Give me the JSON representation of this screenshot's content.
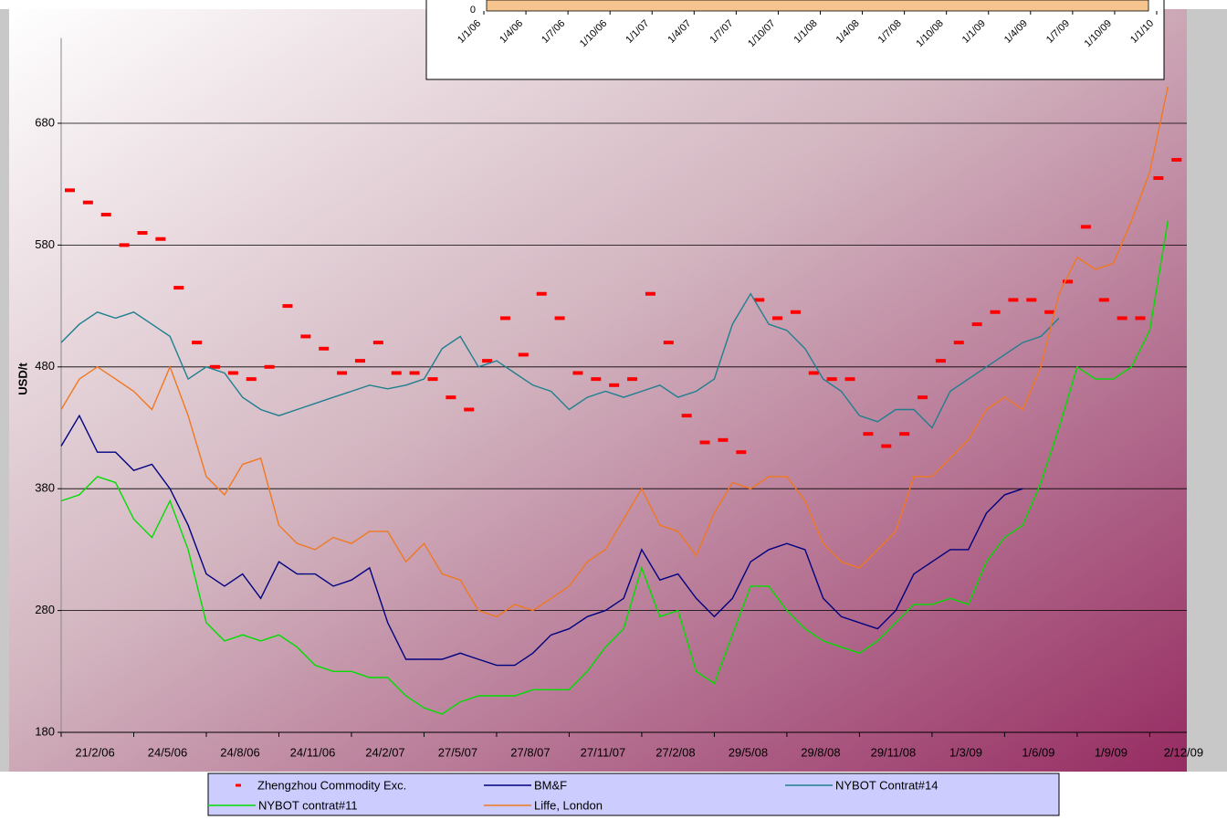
{
  "chart_data": [
    {
      "type": "line",
      "y_label": "USD/t",
      "x": [
        0,
        23,
        46,
        69,
        92,
        115,
        138,
        161,
        184,
        207,
        230,
        253,
        276,
        299,
        322,
        345,
        368,
        391,
        414,
        437,
        460,
        483,
        506,
        529,
        552,
        575,
        598,
        621,
        644,
        667,
        690,
        713,
        736,
        759,
        782,
        805,
        828,
        851,
        874,
        897,
        920,
        943,
        966,
        989,
        1012,
        1035,
        1058,
        1081,
        1104,
        1127,
        1150,
        1173,
        1196,
        1219,
        1242,
        1265,
        1288,
        1311,
        1334,
        1357,
        1380,
        1403
      ],
      "xlim": [
        0,
        1427
      ],
      "xticks": [
        {
          "value": 0,
          "label": "21/2/06"
        },
        {
          "value": 92,
          "label": "24/5/06"
        },
        {
          "value": 184,
          "label": "24/8/06"
        },
        {
          "value": 276,
          "label": "24/11/06"
        },
        {
          "value": 368,
          "label": "24/2/07"
        },
        {
          "value": 460,
          "label": "27/5/07"
        },
        {
          "value": 552,
          "label": "27/8/07"
        },
        {
          "value": 644,
          "label": "27/11/07"
        },
        {
          "value": 736,
          "label": "27/2/08"
        },
        {
          "value": 828,
          "label": "29/5/08"
        },
        {
          "value": 920,
          "label": "29/8/08"
        },
        {
          "value": 1012,
          "label": "29/11/08"
        },
        {
          "value": 1104,
          "label": "1/3/09"
        },
        {
          "value": 1196,
          "label": "1/6/09"
        },
        {
          "value": 1288,
          "label": "1/9/09"
        },
        {
          "value": 1380,
          "label": "2/12/09"
        }
      ],
      "ylim": [
        180,
        750
      ],
      "yticks": [
        180,
        280,
        380,
        480,
        580,
        680
      ],
      "grid": true,
      "legend": "bottom",
      "series": [
        {
          "name": "Zhengzhou Commodity Exc.",
          "type": "scatter",
          "color": "#ff0000",
          "values": [
            625,
            615,
            605,
            580,
            590,
            585,
            545,
            500,
            480,
            475,
            470,
            480,
            530,
            505,
            495,
            475,
            485,
            500,
            475,
            475,
            470,
            455,
            445,
            485,
            520,
            490,
            540,
            520,
            475,
            470,
            465,
            470,
            540,
            500,
            440,
            418,
            420,
            410,
            535,
            520,
            525,
            475,
            470,
            470,
            425,
            415,
            425,
            455,
            485,
            500,
            515,
            525,
            535,
            535,
            525,
            550,
            595,
            535,
            520,
            520,
            635,
            650
          ]
        },
        {
          "name": "BM&F",
          "color": "#000080",
          "values": [
            415,
            440,
            410,
            410,
            395,
            400,
            380,
            350,
            310,
            300,
            310,
            290,
            320,
            310,
            310,
            300,
            305,
            315,
            270,
            240,
            240,
            240,
            245,
            240,
            235,
            235,
            245,
            260,
            265,
            275,
            280,
            290,
            330,
            305,
            310,
            290,
            275,
            290,
            320,
            330,
            335,
            330,
            290,
            275,
            270,
            265,
            280,
            310,
            320,
            330,
            330,
            360,
            375,
            380,
            null,
            null,
            null,
            null,
            null,
            null,
            null,
            null
          ]
        },
        {
          "name": "NYBOT Contrat#14",
          "color": "#1f7f8f",
          "values": [
            500,
            515,
            525,
            520,
            525,
            515,
            505,
            470,
            480,
            475,
            455,
            445,
            440,
            445,
            450,
            455,
            460,
            465,
            462,
            465,
            470,
            495,
            505,
            480,
            485,
            475,
            465,
            460,
            445,
            455,
            460,
            455,
            460,
            465,
            455,
            460,
            470,
            515,
            540,
            515,
            510,
            495,
            470,
            460,
            440,
            435,
            445,
            445,
            430,
            460,
            470,
            480,
            490,
            500,
            505,
            520,
            null,
            null,
            null,
            null,
            null,
            null
          ]
        },
        {
          "name": "NYBOT contrat#11",
          "color": "#00dd00",
          "values": [
            370,
            375,
            390,
            385,
            355,
            340,
            370,
            330,
            270,
            255,
            260,
            255,
            260,
            250,
            235,
            230,
            230,
            225,
            225,
            210,
            200,
            195,
            205,
            210,
            210,
            210,
            215,
            215,
            215,
            230,
            250,
            265,
            315,
            275,
            280,
            230,
            220,
            260,
            300,
            300,
            280,
            265,
            255,
            250,
            245,
            255,
            270,
            285,
            285,
            290,
            285,
            320,
            340,
            350,
            385,
            430,
            480,
            470,
            470,
            480,
            510,
            600
          ]
        },
        {
          "name": "Liffe, London",
          "color": "#f07820",
          "values": [
            445,
            470,
            480,
            470,
            460,
            445,
            480,
            440,
            390,
            375,
            400,
            405,
            350,
            335,
            330,
            340,
            335,
            345,
            345,
            320,
            335,
            310,
            305,
            280,
            275,
            285,
            280,
            290,
            300,
            320,
            330,
            355,
            380,
            350,
            345,
            325,
            360,
            385,
            380,
            390,
            390,
            370,
            335,
            320,
            315,
            330,
            345,
            390,
            390,
            405,
            420,
            445,
            455,
            445,
            480,
            540,
            570,
            560,
            565,
            600,
            640,
            710
          ]
        }
      ]
    },
    {
      "type": "area",
      "color": "#f5c48f",
      "yticks": [
        0
      ],
      "categories": [
        "1/1/06",
        "1/4/06",
        "1/7/06",
        "1/10/06",
        "1/1/07",
        "1/4/07",
        "1/7/07",
        "1/10/07",
        "1/1/08",
        "1/4/08",
        "1/7/08",
        "1/10/08",
        "1/1/09",
        "1/4/09",
        "1/7/09",
        "1/10/09",
        "1/1/10"
      ]
    }
  ]
}
